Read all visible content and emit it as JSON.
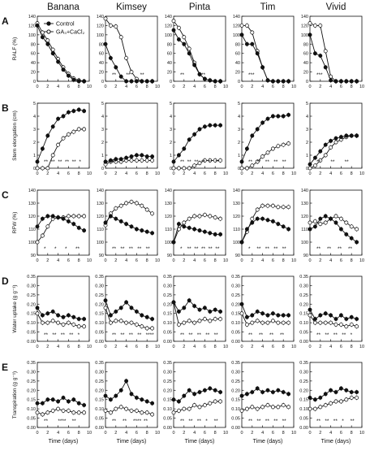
{
  "figure": {
    "columns": [
      "Banana",
      "Kimsey",
      "Pinta",
      "Tim",
      "Vivid"
    ],
    "row_letters": [
      "A",
      "B",
      "C",
      "D",
      "E"
    ],
    "x_label": "Time (days)",
    "legend": {
      "control": "Control",
      "treatment": "GA₃+CaCl₂"
    },
    "colors": {
      "control_fill": "#111111",
      "treatment_fill": "#ffffff",
      "line": "#111111"
    }
  },
  "chart_data": {
    "type": "line",
    "x": [
      0,
      1,
      2,
      3,
      4,
      5,
      6,
      7,
      8,
      9
    ],
    "x_ticks": [
      "0",
      "2",
      "4",
      "6",
      "8",
      "10"
    ],
    "xlim": [
      0,
      10
    ],
    "rows": [
      {
        "letter": "A",
        "ylabel": "RALF (%)",
        "ylim": [
          0,
          140
        ],
        "yticks": [
          "0",
          "20",
          "40",
          "60",
          "80",
          "100",
          "120",
          "140"
        ],
        "panels": [
          {
            "cultivar": "Banana",
            "control": [
              120,
              95,
              80,
              60,
              42,
              25,
              12,
              3,
              0,
              0
            ],
            "treatment": [
              125,
              105,
              88,
              68,
              48,
              30,
              16,
              6,
              2,
              0
            ],
            "stars": []
          },
          {
            "cultivar": "Kimsey",
            "control": [
              80,
              50,
              30,
              10,
              0,
              0,
              0,
              0,
              0,
              0
            ],
            "treatment": [
              135,
              120,
              118,
              95,
              50,
              20,
              5,
              0,
              0,
              0
            ],
            "stars": [
              "**",
              "**",
              "**"
            ]
          },
          {
            "cultivar": "Pinta",
            "control": [
              110,
              90,
              80,
              60,
              35,
              15,
              5,
              2,
              0,
              0
            ],
            "treatment": [
              130,
              115,
              95,
              70,
              40,
              15,
              5,
              2,
              0,
              0
            ],
            "stars": [
              "**",
              "**"
            ]
          },
          {
            "cultivar": "Tim",
            "control": [
              100,
              80,
              80,
              60,
              30,
              2,
              0,
              0,
              0,
              0
            ],
            "treatment": [
              120,
              120,
              105,
              65,
              30,
              2,
              0,
              0,
              0,
              0
            ],
            "stars": [
              "***"
            ]
          },
          {
            "cultivar": "Vivid",
            "control": [
              100,
              60,
              55,
              30,
              2,
              0,
              0,
              0,
              0,
              0
            ],
            "treatment": [
              125,
              120,
              120,
              65,
              10,
              0,
              0,
              0,
              0,
              0
            ],
            "stars": [
              "***"
            ]
          }
        ]
      },
      {
        "letter": "B",
        "ylabel": "Stem elongation (cm)",
        "ylim": [
          0,
          5
        ],
        "yticks": [
          "0",
          "1",
          "2",
          "3",
          "4",
          "5"
        ],
        "panels": [
          {
            "cultivar": "Banana",
            "control": [
              0.5,
              1.5,
              2.5,
              3.2,
              3.8,
              4.0,
              4.3,
              4.4,
              4.5,
              4.4
            ],
            "treatment": [
              0,
              0,
              0,
              1.0,
              1.8,
              2.3,
              2.6,
              2.8,
              3.0,
              3.0
            ],
            "stars": [
              "**",
              "**",
              "**",
              "**",
              "**",
              "*"
            ]
          },
          {
            "cultivar": "Kimsey",
            "control": [
              0.5,
              0.6,
              0.7,
              0.7,
              0.8,
              0.9,
              1.0,
              1.0,
              0.9,
              0.9
            ],
            "treatment": [
              0.3,
              0.5,
              0.5,
              0.5,
              0.6,
              0.6,
              0.6,
              0.6,
              0.6,
              0.6
            ],
            "stars": [
              "**"
            ]
          },
          {
            "cultivar": "Pinta",
            "control": [
              0.5,
              1.0,
              1.5,
              2.2,
              2.6,
              3.0,
              3.2,
              3.3,
              3.3,
              3.3
            ],
            "treatment": [
              0,
              0,
              0,
              0,
              0.2,
              0.4,
              0.6,
              0.6,
              0.6,
              0.6
            ],
            "stars": [
              "**",
              "**",
              "**",
              "**",
              "**",
              "**"
            ]
          },
          {
            "cultivar": "Tim",
            "control": [
              0.5,
              1.5,
              2.5,
              3.0,
              3.5,
              3.8,
              4.0,
              4.0,
              4.0,
              4.1
            ],
            "treatment": [
              0,
              0,
              0.2,
              0.5,
              0.9,
              1.2,
              1.5,
              1.7,
              1.8,
              1.9
            ],
            "stars": [
              "**",
              "**",
              "**",
              "**",
              "**"
            ]
          },
          {
            "cultivar": "Vivid",
            "control": [
              0.3,
              0.8,
              1.3,
              1.8,
              2.1,
              2.3,
              2.4,
              2.5,
              2.5,
              2.5
            ],
            "treatment": [
              0,
              0.2,
              0.6,
              1.0,
              1.6,
              2.0,
              2.2,
              2.4,
              2.5,
              2.5
            ],
            "stars": [
              "**",
              "**",
              "**"
            ]
          }
        ]
      },
      {
        "letter": "C",
        "ylabel": "RFW (%)",
        "ylim": [
          90,
          140
        ],
        "yticks": [
          "90",
          "100",
          "110",
          "120",
          "130",
          "140"
        ],
        "panels": [
          {
            "cultivar": "Banana",
            "control": [
              112,
              118,
              120,
              120,
              119,
              118,
              116,
              114,
              111,
              109
            ],
            "treatment": [
              100,
              105,
              112,
              118,
              119,
              119,
              120,
              120,
              120,
              120
            ],
            "stars": [
              "*",
              "*",
              "*",
              "**"
            ]
          },
          {
            "cultivar": "Kimsey",
            "control": [
              115,
              120,
              118,
              116,
              114,
              112,
              110,
              109,
              108,
              107
            ],
            "treatment": [
              113,
              122,
              126,
              128,
              130,
              131,
              130,
              128,
              125,
              122
            ],
            "stars": [
              "**",
              "**",
              "**",
              "**",
              "**"
            ]
          },
          {
            "cultivar": "Pinta",
            "control": [
              100,
              114,
              112,
              111,
              110,
              109,
              108,
              107,
              106,
              106
            ],
            "treatment": [
              100,
              110,
              115,
              118,
              120,
              120,
              121,
              120,
              119,
              118
            ],
            "stars": [
              "*",
              "**",
              "**",
              "**",
              "**",
              "**"
            ]
          },
          {
            "cultivar": "Tim",
            "control": [
              100,
              110,
              115,
              118,
              118,
              117,
              116,
              114,
              112,
              110
            ],
            "treatment": [
              100,
              108,
              118,
              125,
              128,
              128,
              128,
              127,
              127,
              127
            ],
            "stars": [
              "*",
              "**",
              "**",
              "**",
              "**"
            ]
          },
          {
            "cultivar": "Vivid",
            "control": [
              110,
              112,
              118,
              120,
              118,
              115,
              110,
              106,
              103,
              100
            ],
            "treatment": [
              115,
              116,
              114,
              115,
              118,
              120,
              118,
              115,
              112,
              110
            ],
            "stars": [
              "**",
              "**",
              "**",
              "**"
            ]
          }
        ]
      },
      {
        "letter": "D",
        "ylabel": "Water uptake (g g⁻¹)",
        "ylim": [
          0,
          0.35
        ],
        "yticks": [
          "0.00",
          "0.05",
          "0.10",
          "0.15",
          "0.20",
          "0.25",
          "0.30",
          "0.35"
        ],
        "panels": [
          {
            "cultivar": "Banana",
            "control": [
              0.18,
              0.14,
              0.15,
              0.16,
              0.14,
              0.13,
              0.14,
              0.13,
              0.12,
              0.12
            ],
            "treatment": [
              0.15,
              0.1,
              0.1,
              0.11,
              0.1,
              0.09,
              0.1,
              0.09,
              0.08,
              0.08
            ],
            "stars": [
              "**",
              "**",
              "**",
              "**",
              "*"
            ]
          },
          {
            "cultivar": "Kimsey",
            "control": [
              0.22,
              0.14,
              0.16,
              0.18,
              0.21,
              0.18,
              0.16,
              0.14,
              0.13,
              0.12
            ],
            "treatment": [
              0.18,
              0.1,
              0.11,
              0.11,
              0.1,
              0.1,
              0.09,
              0.08,
              0.07,
              0.07
            ],
            "stars": [
              "**",
              "**",
              "**",
              "**",
              "****"
            ]
          },
          {
            "cultivar": "Pinta",
            "control": [
              0.21,
              0.16,
              0.18,
              0.22,
              0.19,
              0.17,
              0.18,
              0.16,
              0.17,
              0.16
            ],
            "treatment": [
              0.21,
              0.09,
              0.1,
              0.11,
              0.1,
              0.11,
              0.12,
              0.11,
              0.12,
              0.12
            ],
            "stars": [
              "**",
              "**",
              "**",
              "**",
              "**"
            ]
          },
          {
            "cultivar": "Tim",
            "control": [
              0.2,
              0.13,
              0.14,
              0.16,
              0.15,
              0.14,
              0.15,
              0.14,
              0.14,
              0.14
            ],
            "treatment": [
              0.15,
              0.09,
              0.1,
              0.11,
              0.1,
              0.1,
              0.11,
              0.1,
              0.1,
              0.1
            ],
            "stars": [
              "**",
              "**",
              "**",
              "**"
            ]
          },
          {
            "cultivar": "Vivid",
            "control": [
              0.17,
              0.12,
              0.14,
              0.15,
              0.14,
              0.12,
              0.14,
              0.12,
              0.13,
              0.12
            ],
            "treatment": [
              0.14,
              0.1,
              0.1,
              0.1,
              0.1,
              0.09,
              0.09,
              0.08,
              0.09,
              0.08
            ],
            "stars": [
              "**",
              "**",
              "**",
              "**",
              "*"
            ]
          }
        ]
      },
      {
        "letter": "E",
        "ylabel": "Transpiration (g g⁻¹)",
        "ylim": [
          0,
          0.35
        ],
        "yticks": [
          "0.00",
          "0.05",
          "0.10",
          "0.15",
          "0.20",
          "0.25",
          "0.30",
          "0.35"
        ],
        "panels": [
          {
            "cultivar": "Banana",
            "control": [
              0.13,
              0.13,
              0.15,
              0.15,
              0.14,
              0.16,
              0.14,
              0.15,
              0.13,
              0.12
            ],
            "treatment": [
              0.08,
              0.07,
              0.08,
              0.09,
              0.1,
              0.09,
              0.09,
              0.08,
              0.08,
              0.08
            ],
            "stars": [
              "**",
              "****",
              "**"
            ]
          },
          {
            "cultivar": "Kimsey",
            "control": [
              0.17,
              0.15,
              0.17,
              0.2,
              0.25,
              0.18,
              0.16,
              0.15,
              0.14,
              0.13
            ],
            "treatment": [
              0.09,
              0.08,
              0.1,
              0.11,
              0.1,
              0.09,
              0.09,
              0.08,
              0.08,
              0.07
            ],
            "stars": [
              "**",
              "**",
              "****",
              "**"
            ]
          },
          {
            "cultivar": "Pinta",
            "control": [
              0.15,
              0.14,
              0.17,
              0.2,
              0.18,
              0.19,
              0.2,
              0.21,
              0.2,
              0.19
            ],
            "treatment": [
              0.08,
              0.09,
              0.1,
              0.1,
              0.12,
              0.11,
              0.12,
              0.13,
              0.14,
              0.14
            ],
            "stars": [
              "**",
              "**",
              "**",
              "*",
              "**"
            ]
          },
          {
            "cultivar": "Tim",
            "control": [
              0.17,
              0.18,
              0.19,
              0.21,
              0.19,
              0.2,
              0.19,
              0.2,
              0.19,
              0.18
            ],
            "treatment": [
              0.09,
              0.1,
              0.11,
              0.1,
              0.11,
              0.12,
              0.11,
              0.11,
              0.12,
              0.11
            ],
            "stars": [
              "**",
              "**",
              "**",
              "**",
              "**"
            ]
          },
          {
            "cultivar": "Vivid",
            "control": [
              0.16,
              0.15,
              0.16,
              0.18,
              0.2,
              0.19,
              0.21,
              0.2,
              0.19,
              0.19
            ],
            "treatment": [
              0.1,
              0.1,
              0.11,
              0.12,
              0.13,
              0.14,
              0.14,
              0.15,
              0.16,
              0.16
            ],
            "stars": [
              "**",
              "**",
              "**",
              "*",
              "**"
            ]
          }
        ]
      }
    ]
  }
}
